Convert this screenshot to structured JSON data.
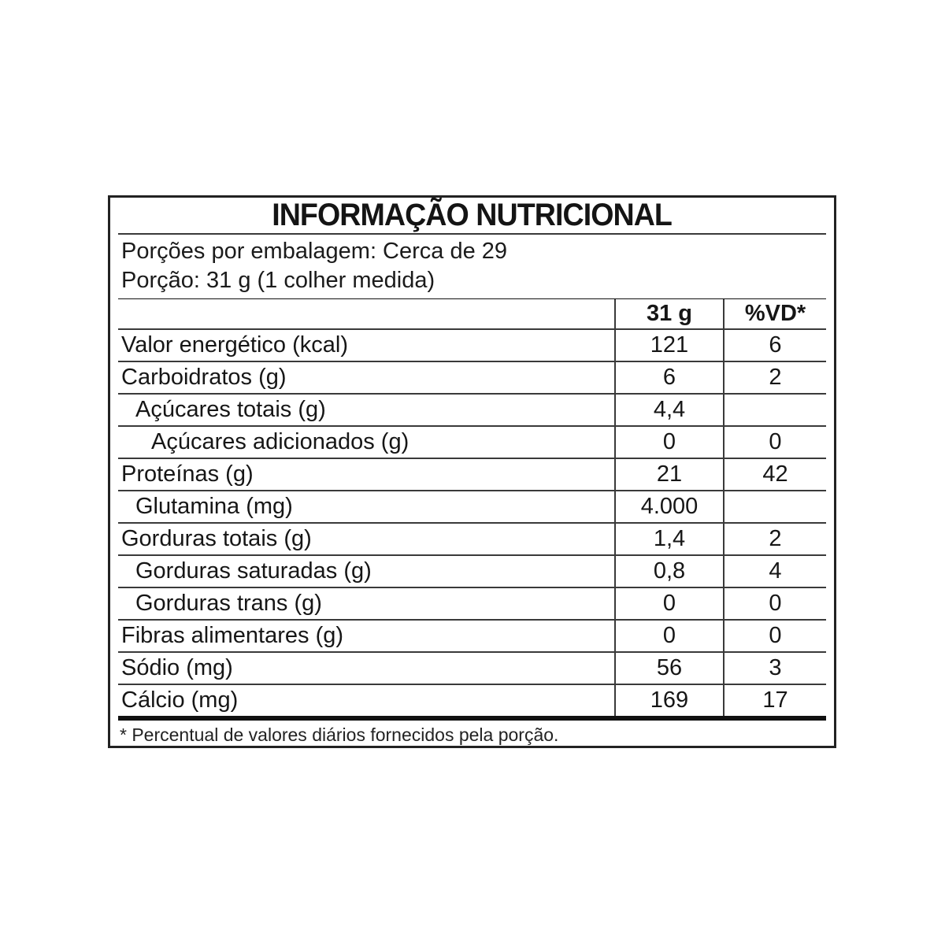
{
  "label": {
    "title": "INFORMAÇÃO NUTRICIONAL",
    "servings_line": "Porções por embalagem: Cerca de 29",
    "portion_line": "Porção: 31 g (1 colher medida)",
    "footnote": "* Percentual de valores diários fornecidos pela porção."
  },
  "table": {
    "columns": {
      "amount": "31 g",
      "dv": "%VD*"
    },
    "rows": [
      {
        "label": "Valor energético (kcal)",
        "amount": "121",
        "dv": "6"
      },
      {
        "label": "Carboidratos (g)",
        "amount": "6",
        "dv": "2"
      },
      {
        "label": "Açúcares totais (g)",
        "amount": "4,4",
        "dv": ""
      },
      {
        "label": "Açúcares adicionados (g)",
        "amount": "0",
        "dv": "0"
      },
      {
        "label": "Proteínas (g)",
        "amount": "21",
        "dv": "42"
      },
      {
        "label": "Glutamina (mg)",
        "amount": "4.000",
        "dv": ""
      },
      {
        "label": "Gorduras totais (g)",
        "amount": "1,4",
        "dv": "2"
      },
      {
        "label": "Gorduras saturadas (g)",
        "amount": "0,8",
        "dv": "4"
      },
      {
        "label": "Gorduras trans (g)",
        "amount": "0",
        "dv": "0"
      },
      {
        "label": "Fibras alimentares (g)",
        "amount": "0",
        "dv": "0"
      },
      {
        "label": "Sódio (mg)",
        "amount": "56",
        "dv": "3"
      },
      {
        "label": "Cálcio (mg)",
        "amount": "169",
        "dv": "17"
      }
    ]
  }
}
